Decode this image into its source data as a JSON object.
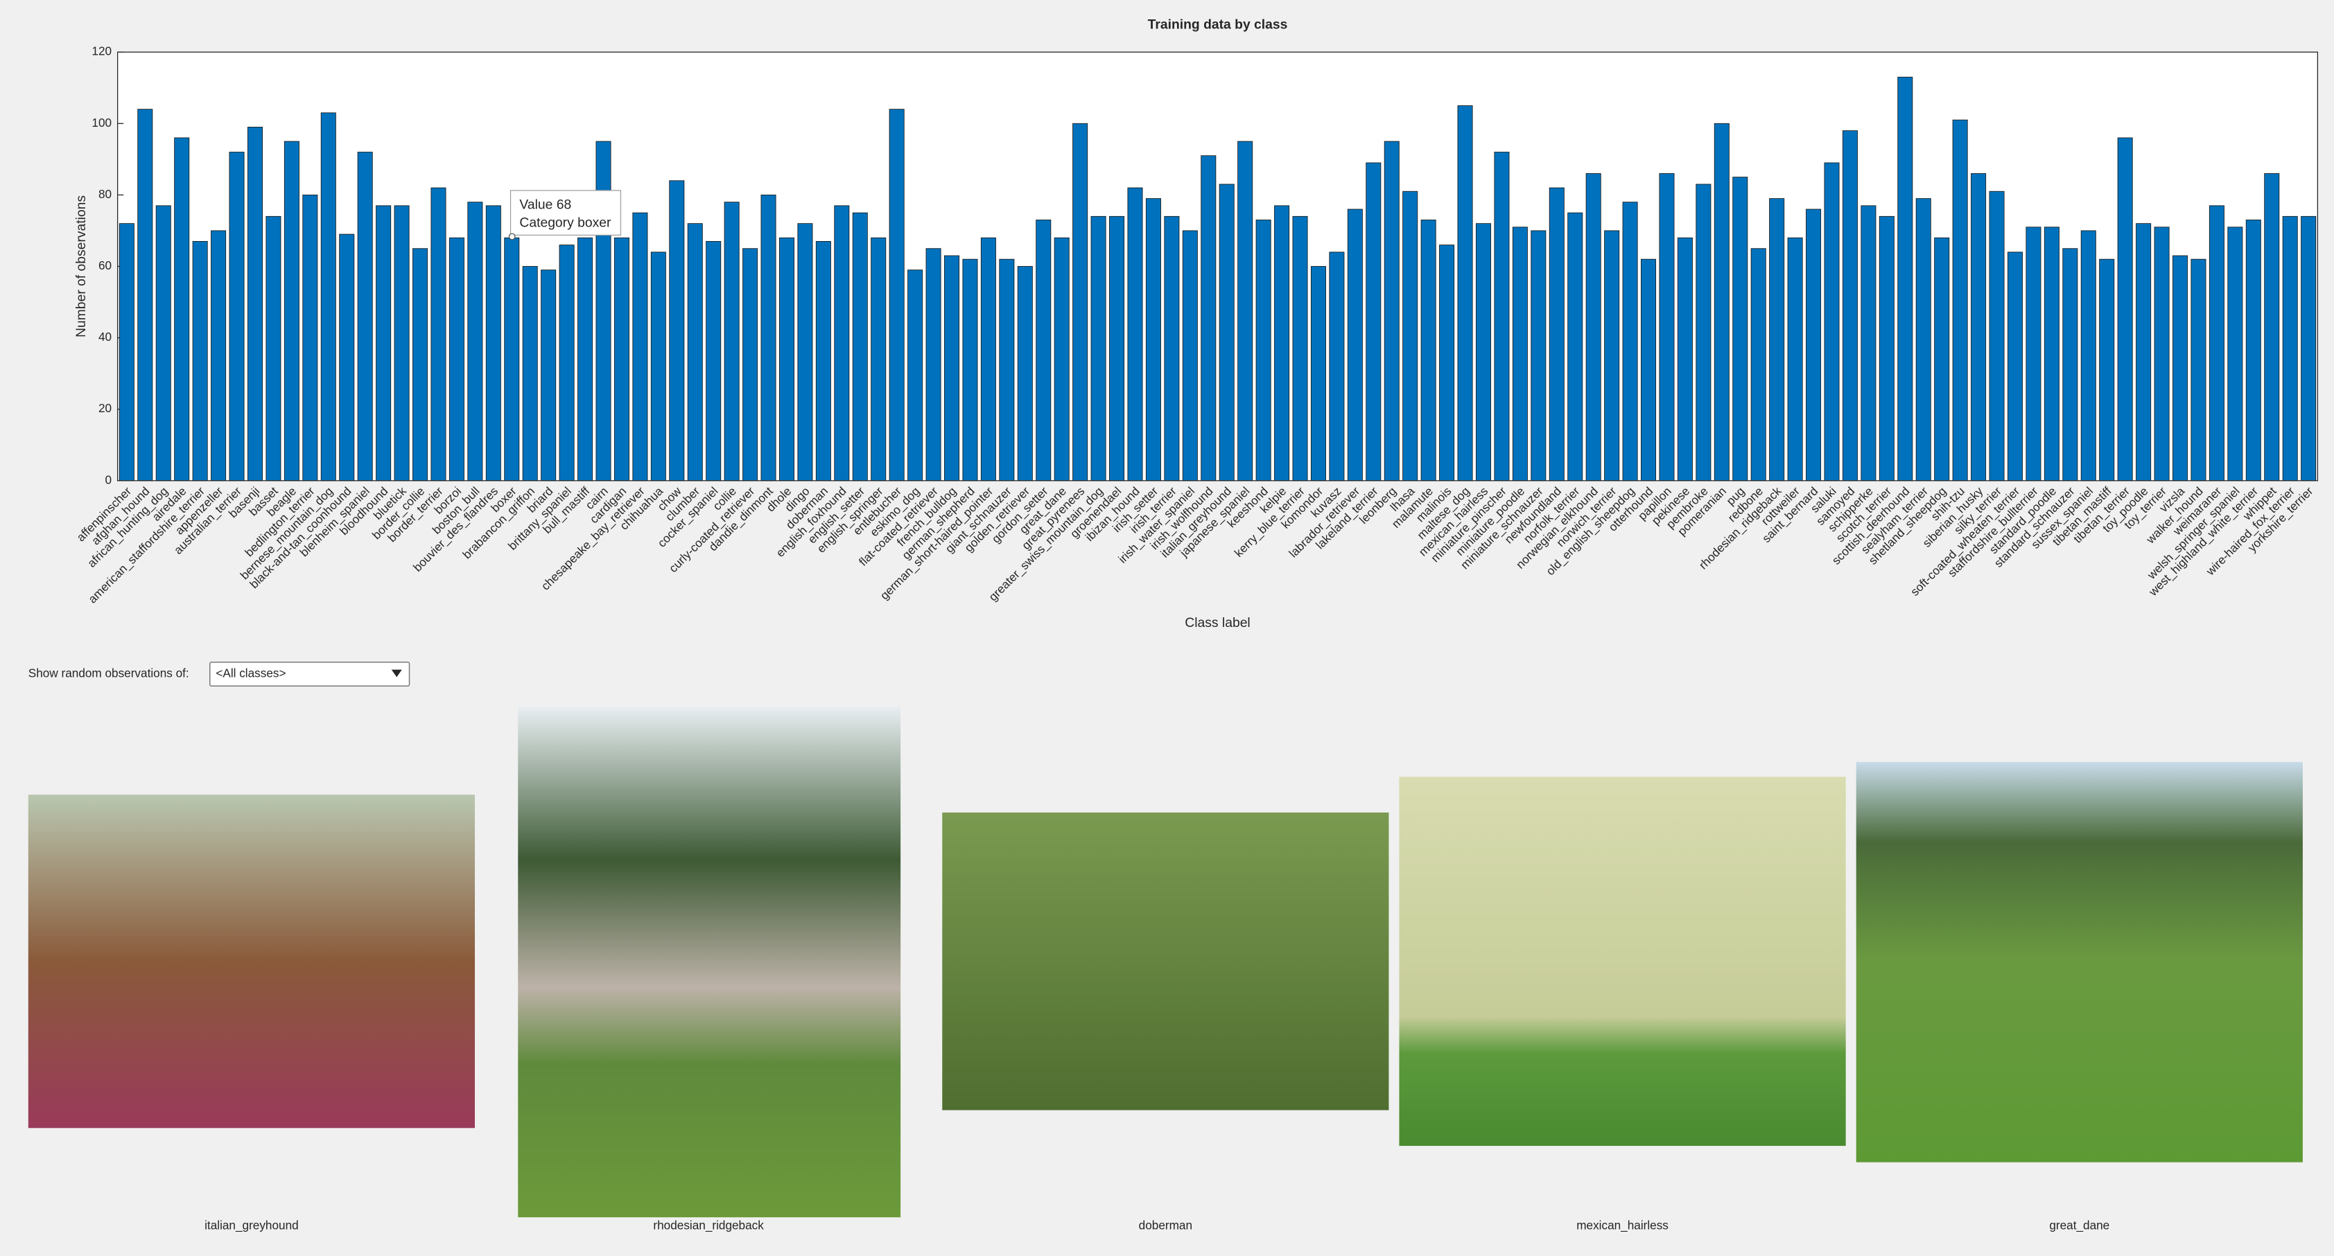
{
  "chart_data": {
    "type": "bar",
    "title": "Training data by class",
    "x_label": "Class label",
    "y_label": "Number of observations",
    "categories": [
      "affenpinscher",
      "afghan_hound",
      "african_hunting_dog",
      "airedale",
      "american_staffordshire_terrier",
      "appenzeller",
      "australian_terrier",
      "basenji",
      "basset",
      "beagle",
      "bedlington_terrier",
      "bernese_mountain_dog",
      "black-and-tan_coonhound",
      "blenheim_spaniel",
      "bloodhound",
      "bluetick",
      "border_collie",
      "border_terrier",
      "borzoi",
      "boston_bull",
      "bouvier_des_flandres",
      "boxer",
      "brabancon_griffon",
      "briard",
      "brittany_spaniel",
      "bull_mastiff",
      "cairn",
      "cardigan",
      "chesapeake_bay_retriever",
      "chihuahua",
      "chow",
      "clumber",
      "cocker_spaniel",
      "collie",
      "curly-coated_retriever",
      "dandie_dinmont",
      "dhole",
      "dingo",
      "doberman",
      "english_foxhound",
      "english_setter",
      "english_springer",
      "entlebucher",
      "eskimo_dog",
      "flat-coated_retriever",
      "french_bulldog",
      "german_shepherd",
      "german_short-haired_pointer",
      "giant_schnauzer",
      "golden_retriever",
      "gordon_setter",
      "great_dane",
      "great_pyrenees",
      "greater_swiss_mountain_dog",
      "groenendael",
      "ibizan_hound",
      "irish_setter",
      "irish_terrier",
      "irish_water_spaniel",
      "irish_wolfhound",
      "italian_greyhound",
      "japanese_spaniel",
      "keeshond",
      "kelpie",
      "kerry_blue_terrier",
      "komondor",
      "kuvasz",
      "labrador_retriever",
      "lakeland_terrier",
      "leonberg",
      "lhasa",
      "malamute",
      "malinois",
      "maltese_dog",
      "mexican_hairless",
      "miniature_pinscher",
      "miniature_poodle",
      "miniature_schnauzer",
      "newfoundland",
      "norfolk_terrier",
      "norwegian_elkhound",
      "norwich_terrier",
      "old_english_sheepdog",
      "otterhound",
      "papillon",
      "pekinese",
      "pembroke",
      "pomeranian",
      "pug",
      "redbone",
      "rhodesian_ridgeback",
      "rottweiler",
      "saint_bernard",
      "saluki",
      "samoyed",
      "schipperke",
      "scotch_terrier",
      "scottish_deerhound",
      "sealyham_terrier",
      "shetland_sheepdog",
      "shih-tzu",
      "siberian_husky",
      "silky_terrier",
      "soft-coated_wheaten_terrier",
      "staffordshire_bullterrier",
      "standard_poodle",
      "standard_schnauzer",
      "sussex_spaniel",
      "tibetan_mastiff",
      "tibetan_terrier",
      "toy_poodle",
      "toy_terrier",
      "vizsla",
      "walker_hound",
      "weimaraner",
      "welsh_springer_spaniel",
      "west_highland_white_terrier",
      "whippet",
      "wire-haired_fox_terrier",
      "yorkshire_terrier"
    ],
    "values": [
      72,
      104,
      77,
      96,
      67,
      70,
      92,
      99,
      74,
      95,
      80,
      103,
      69,
      92,
      77,
      77,
      65,
      82,
      68,
      78,
      77,
      68,
      60,
      59,
      66,
      68,
      95,
      68,
      75,
      64,
      84,
      72,
      67,
      78,
      65,
      80,
      68,
      72,
      67,
      77,
      75,
      68,
      104,
      59,
      65,
      63,
      62,
      68,
      62,
      60,
      73,
      68,
      100,
      74,
      74,
      82,
      79,
      74,
      70,
      91,
      83,
      95,
      73,
      77,
      74,
      60,
      64,
      76,
      89,
      95,
      81,
      73,
      66,
      105,
      72,
      92,
      71,
      70,
      82,
      75,
      86,
      70,
      78,
      62,
      86,
      68,
      83,
      100,
      85,
      65,
      79,
      68,
      76,
      89,
      98,
      77,
      74,
      113,
      79,
      68,
      101,
      86,
      81,
      64,
      71,
      71,
      65,
      70,
      62,
      96,
      72,
      71,
      63,
      62,
      77,
      71,
      73,
      86,
      74,
      74
    ],
    "color": "#0072bd",
    "ylim": [
      0,
      120
    ],
    "yticks": [
      0,
      20,
      40,
      60,
      80,
      100,
      120
    ]
  },
  "tooltip": {
    "lines": [
      "Value 68",
      "Category boxer"
    ]
  },
  "controls": {
    "label": "Show random observations of:",
    "dropdown": "<All classes>"
  },
  "images": [
    {
      "label": "italian_greyhound"
    },
    {
      "label": "rhodesian_ridgeback"
    },
    {
      "label": "doberman"
    },
    {
      "label": "mexican_hairless"
    },
    {
      "label": "great_dane"
    }
  ]
}
